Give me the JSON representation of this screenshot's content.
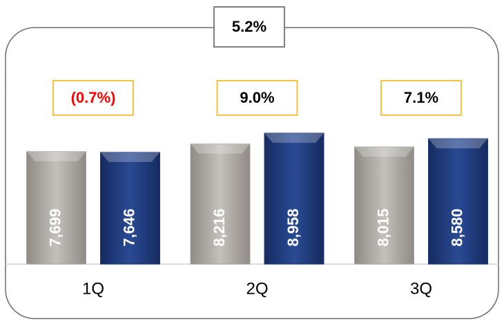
{
  "chart_data": {
    "type": "bar",
    "categories": [
      "1Q",
      "2Q",
      "3Q"
    ],
    "series": [
      {
        "color": "#a8a49f",
        "values": [
          7699,
          8216,
          8015
        ],
        "value_labels": [
          "7,699",
          "8,216",
          "8,015"
        ]
      },
      {
        "color": "#1f3a7a",
        "values": [
          7646,
          8958,
          8580
        ],
        "value_labels": [
          "7,646",
          "8,958",
          "8,580"
        ]
      }
    ],
    "ylim": [
      0,
      10000
    ],
    "annotations": [
      {
        "text": "(0.7%)",
        "color": "#ff0000"
      },
      {
        "text": "9.0%",
        "color": "#000000"
      },
      {
        "text": "7.1%",
        "color": "#000000"
      }
    ],
    "total_annotation": "5.2%"
  }
}
